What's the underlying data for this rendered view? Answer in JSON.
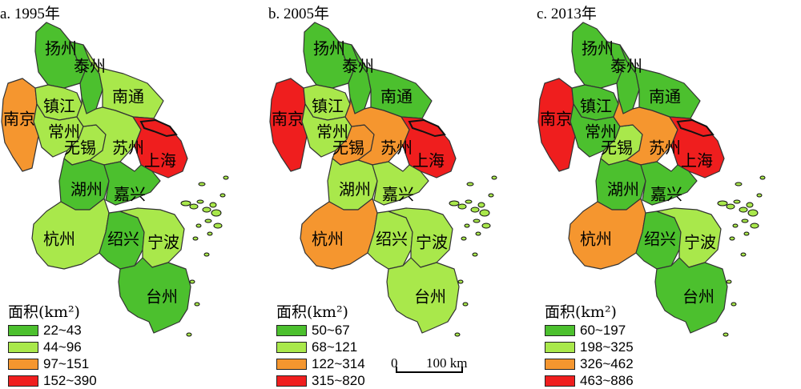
{
  "colors": {
    "dark_green": "#4CC02E",
    "light_green": "#A9E84B",
    "orange": "#F5962F",
    "red": "#EF1E1E",
    "border": "#333333"
  },
  "panels": [
    {
      "title": "a. 1995年",
      "legend_title": "面积(km²)",
      "legend": [
        {
          "label": "22~43",
          "color": "#4CC02E"
        },
        {
          "label": "44~96",
          "color": "#A9E84B"
        },
        {
          "label": "97~151",
          "color": "#F5962F"
        },
        {
          "label": "152~390",
          "color": "#EF1E1E"
        }
      ],
      "cities": {
        "扬州": "#4CC02E",
        "泰州": "#4CC02E",
        "南通": "#A9E84B",
        "南京": "#F5962F",
        "镇江": "#A9E84B",
        "常州": "#A9E84B",
        "无锡": "#A9E84B",
        "苏州": "#A9E84B",
        "上海": "#EF1E1E",
        "湖州": "#4CC02E",
        "嘉兴": "#4CC02E",
        "杭州": "#A9E84B",
        "绍兴": "#4CC02E",
        "宁波": "#A9E84B",
        "台州": "#4CC02E"
      }
    },
    {
      "title": "b. 2005年",
      "legend_title": "面积(km²)",
      "legend": [
        {
          "label": "50~67",
          "color": "#4CC02E"
        },
        {
          "label": "68~121",
          "color": "#A9E84B"
        },
        {
          "label": "122~314",
          "color": "#F5962F"
        },
        {
          "label": "315~820",
          "color": "#EF1E1E"
        }
      ],
      "cities": {
        "扬州": "#4CC02E",
        "泰州": "#4CC02E",
        "南通": "#4CC02E",
        "南京": "#EF1E1E",
        "镇江": "#A9E84B",
        "常州": "#A9E84B",
        "无锡": "#F5962F",
        "苏州": "#F5962F",
        "上海": "#EF1E1E",
        "湖州": "#A9E84B",
        "嘉兴": "#A9E84B",
        "杭州": "#F5962F",
        "绍兴": "#A9E84B",
        "宁波": "#A9E84B",
        "台州": "#A9E84B"
      }
    },
    {
      "title": "c. 2013年",
      "legend_title": "面积(km²)",
      "legend": [
        {
          "label": "60~197",
          "color": "#4CC02E"
        },
        {
          "label": "198~325",
          "color": "#A9E84B"
        },
        {
          "label": "326~462",
          "color": "#F5962F"
        },
        {
          "label": "463~886",
          "color": "#EF1E1E"
        }
      ],
      "cities": {
        "扬州": "#4CC02E",
        "泰州": "#4CC02E",
        "南通": "#4CC02E",
        "南京": "#EF1E1E",
        "镇江": "#4CC02E",
        "常州": "#4CC02E",
        "无锡": "#A9E84B",
        "苏州": "#F5962F",
        "上海": "#EF1E1E",
        "湖州": "#4CC02E",
        "嘉兴": "#4CC02E",
        "杭州": "#F5962F",
        "绍兴": "#4CC02E",
        "宁波": "#A9E84B",
        "台州": "#4CC02E"
      }
    }
  ],
  "scalebar": {
    "left_label": "0",
    "right_label": "100 km"
  }
}
